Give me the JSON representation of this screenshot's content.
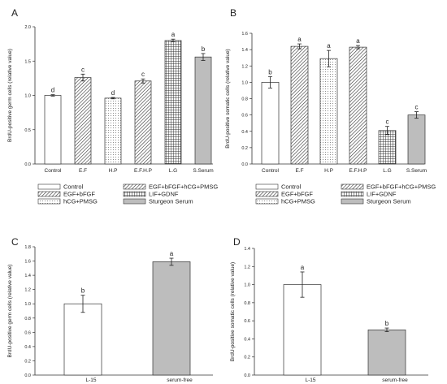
{
  "chart_data": [
    {
      "panel": "A",
      "type": "bar",
      "ylabel": "BrdU-positive germ cells (relative value)",
      "categories": [
        "Control",
        "E.F",
        "H.P",
        "E.F.H.P",
        "L.G",
        "S.Serum"
      ],
      "values": [
        1.0,
        1.26,
        0.96,
        1.21,
        1.8,
        1.56
      ],
      "errors": [
        0.01,
        0.05,
        0.01,
        0.03,
        0.02,
        0.05
      ],
      "letters": [
        "d",
        "c",
        "d",
        "c",
        "a",
        "b"
      ],
      "patterns": [
        "white",
        "diag",
        "dots",
        "diag",
        "grid",
        "gray"
      ],
      "ylim": [
        0,
        2.0
      ],
      "yticks": [
        "0.0",
        "0.5",
        "1.0",
        "1.5",
        "2.0"
      ],
      "ytick_values": [
        0,
        0.5,
        1.0,
        1.5,
        2.0
      ]
    },
    {
      "panel": "B",
      "type": "bar",
      "ylabel": "BrdU-positive somatic cells (relative value)",
      "categories": [
        "Control",
        "E.F",
        "H.P",
        "E.F.H.P",
        "L.G",
        "S.Serum"
      ],
      "values": [
        1.0,
        1.44,
        1.29,
        1.43,
        0.41,
        0.6
      ],
      "errors": [
        0.07,
        0.03,
        0.1,
        0.02,
        0.05,
        0.04
      ],
      "letters": [
        "b",
        "a",
        "a",
        "a",
        "c",
        "c"
      ],
      "patterns": [
        "white",
        "diag",
        "dots",
        "diag",
        "grid",
        "gray"
      ],
      "ylim": [
        0,
        1.6
      ],
      "yticks": [
        "0.0",
        "0.2",
        "0.4",
        "0.6",
        "0.8",
        "1.0",
        "1.2",
        "1.4",
        "1.6"
      ],
      "ytick_values": [
        0,
        0.2,
        0.4,
        0.6,
        0.8,
        1.0,
        1.2,
        1.4,
        1.6
      ]
    },
    {
      "panel": "C",
      "type": "bar",
      "ylabel": "BrdU-positive germ cells (relative value)",
      "categories": [
        "L-15",
        "serum-free"
      ],
      "values": [
        1.0,
        1.59
      ],
      "errors": [
        0.12,
        0.05
      ],
      "letters": [
        "b",
        "a"
      ],
      "patterns": [
        "white",
        "gray"
      ],
      "ylim": [
        0,
        1.8
      ],
      "yticks": [
        "0.0",
        "0.2",
        "0.4",
        "0.6",
        "0.8",
        "1.0",
        "1.2",
        "1.4",
        "1.6",
        "1.8"
      ],
      "ytick_values": [
        0,
        0.2,
        0.4,
        0.6,
        0.8,
        1.0,
        1.2,
        1.4,
        1.6,
        1.8
      ]
    },
    {
      "panel": "D",
      "type": "bar",
      "ylabel": "BrdU-positive somatic cells (relative value)",
      "categories": [
        "L-15",
        "serum-free"
      ],
      "values": [
        1.0,
        0.5
      ],
      "errors": [
        0.14,
        0.02
      ],
      "letters": [
        "a",
        "b"
      ],
      "patterns": [
        "white",
        "gray"
      ],
      "ylim": [
        0,
        1.4
      ],
      "yticks": [
        "0.0",
        "0.2",
        "0.4",
        "0.6",
        "0.8",
        "1.0",
        "1.2",
        "1.4"
      ],
      "ytick_values": [
        0,
        0.2,
        0.4,
        0.6,
        0.8,
        1.0,
        1.2,
        1.4
      ]
    }
  ],
  "legend": {
    "items": [
      {
        "label": "Control",
        "pattern": "white"
      },
      {
        "label": "EGF+bFGF+hCG+PMSG",
        "pattern": "diag"
      },
      {
        "label": "EGF+bFGF",
        "pattern": "diag"
      },
      {
        "label": "LIF+GDNF",
        "pattern": "grid"
      },
      {
        "label": "hCG+PMSG",
        "pattern": "dots"
      },
      {
        "label": "Sturgeon Serum",
        "pattern": "gray"
      }
    ]
  },
  "colors": {
    "gray_bar": "#bdbdbd",
    "axis": "#333333"
  }
}
